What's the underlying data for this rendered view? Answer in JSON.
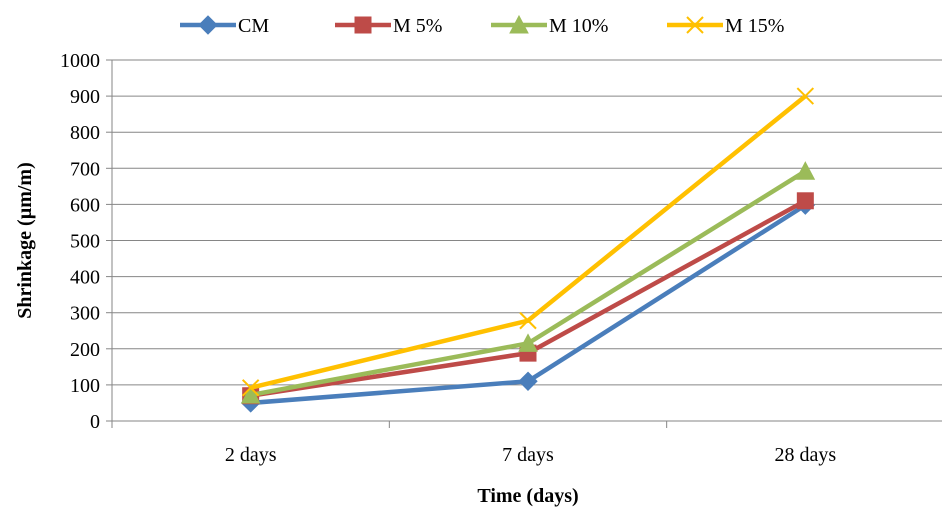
{
  "chart_data": {
    "type": "line",
    "title": "",
    "xlabel": "Time (days)",
    "ylabel": "Shrinkage  (µm/m)",
    "categories": [
      "2 days",
      "7 days",
      "28 days"
    ],
    "ylim": [
      0,
      1000
    ],
    "yticks": [
      0,
      100,
      200,
      300,
      400,
      500,
      600,
      700,
      800,
      900,
      1000
    ],
    "grid": true,
    "legend_position": "top",
    "series": [
      {
        "name": "CM",
        "values": [
          50,
          110,
          598
        ],
        "color": "#4A7EBB",
        "marker": "diamond"
      },
      {
        "name": "M 5%",
        "values": [
          70,
          188,
          610
        ],
        "color": "#BE4B48",
        "marker": "square"
      },
      {
        "name": "M 10%",
        "values": [
          72,
          215,
          692
        ],
        "color": "#9BBB59",
        "marker": "triangle"
      },
      {
        "name": "M 15%",
        "values": [
          92,
          278,
          900
        ],
        "color": "#FFC000",
        "marker": "x"
      }
    ]
  }
}
